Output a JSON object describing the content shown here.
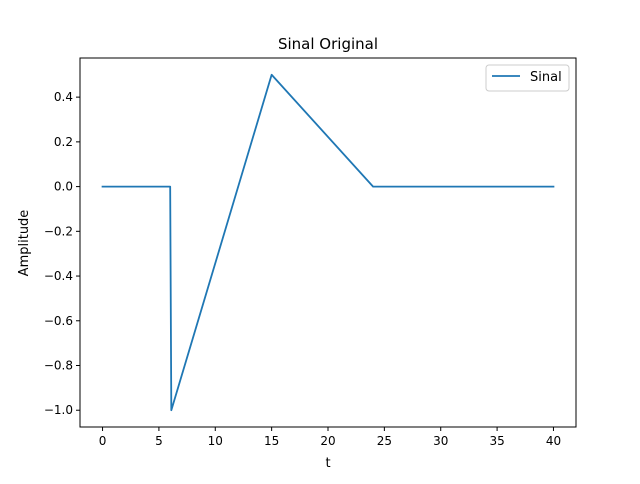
{
  "chart_data": {
    "type": "line",
    "title": "Sinal Original",
    "xlabel": "t",
    "ylabel": "Amplitude",
    "xlim": [
      -2,
      42
    ],
    "ylim": [
      -1.075,
      0.575
    ],
    "xticks": [
      0,
      5,
      10,
      15,
      20,
      25,
      30,
      35,
      40
    ],
    "yticks": [
      -1.0,
      -0.8,
      -0.6,
      -0.4,
      -0.2,
      0.0,
      0.2,
      0.4
    ],
    "ytick_labels": [
      "−1.0",
      "−0.8",
      "−0.6",
      "−0.4",
      "−0.2",
      "0.0",
      "0.2",
      "0.4"
    ],
    "grid": false,
    "legend": {
      "position": "top-right"
    },
    "series": [
      {
        "name": "Sinal",
        "color": "#1f77b4",
        "x": [
          0,
          6,
          6.1,
          15,
          24,
          40
        ],
        "y": [
          0,
          0,
          -1.0,
          0.5,
          0,
          0
        ]
      }
    ]
  }
}
